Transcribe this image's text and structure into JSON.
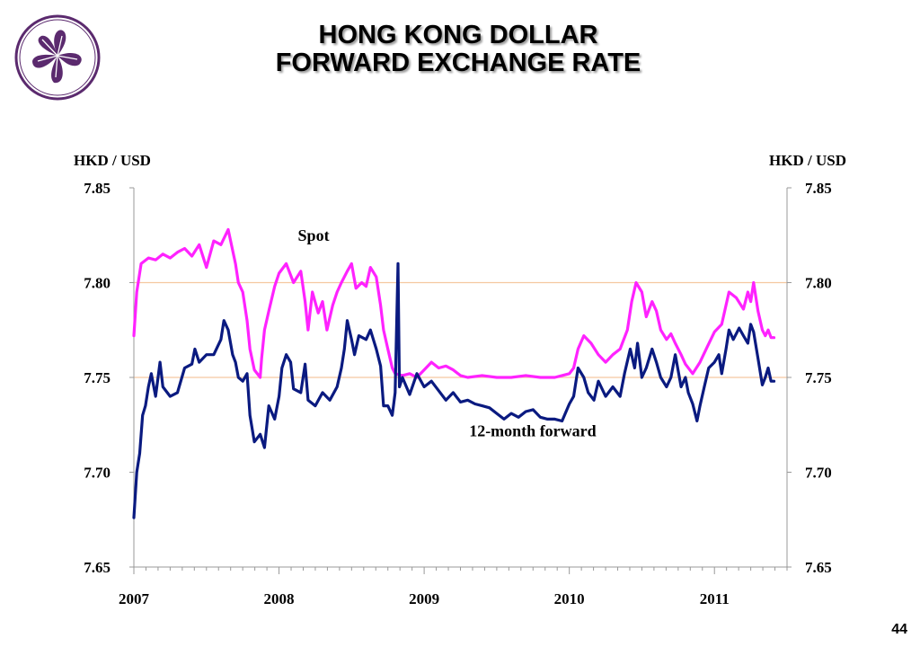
{
  "slide": {
    "title_line1": "HONG KONG DOLLAR",
    "title_line2": "FORWARD EXCHANGE RATE",
    "page_number": "44"
  },
  "colors": {
    "spot": "#ff22ff",
    "forward": "#0a1a80",
    "reference_line": "#f5c8a0",
    "logo": "#5b2a6e"
  },
  "chart_data": {
    "type": "line",
    "title": "",
    "ylabel_left": "HKD / USD",
    "ylabel_right": "HKD / USD",
    "ylim": [
      7.65,
      7.85
    ],
    "xlim": [
      2007.0,
      2011.5
    ],
    "y_ticks": [
      "7.85",
      "7.80",
      "7.75",
      "7.70",
      "7.65"
    ],
    "x_ticks": [
      "2007",
      "2008",
      "2009",
      "2010",
      "2011"
    ],
    "reference_lines": [
      7.8,
      7.75
    ],
    "grid": false,
    "legend": "inline labels",
    "series": [
      {
        "name": "Spot",
        "color": "#ff22ff",
        "points": [
          [
            2007.0,
            7.772
          ],
          [
            2007.02,
            7.795
          ],
          [
            2007.05,
            7.81
          ],
          [
            2007.1,
            7.813
          ],
          [
            2007.15,
            7.812
          ],
          [
            2007.2,
            7.815
          ],
          [
            2007.25,
            7.813
          ],
          [
            2007.3,
            7.816
          ],
          [
            2007.35,
            7.818
          ],
          [
            2007.4,
            7.814
          ],
          [
            2007.45,
            7.82
          ],
          [
            2007.5,
            7.808
          ],
          [
            2007.55,
            7.822
          ],
          [
            2007.6,
            7.82
          ],
          [
            2007.65,
            7.828
          ],
          [
            2007.7,
            7.81
          ],
          [
            2007.72,
            7.8
          ],
          [
            2007.75,
            7.795
          ],
          [
            2007.78,
            7.78
          ],
          [
            2007.8,
            7.765
          ],
          [
            2007.83,
            7.754
          ],
          [
            2007.87,
            7.75
          ],
          [
            2007.88,
            7.76
          ],
          [
            2007.9,
            7.775
          ],
          [
            2007.93,
            7.785
          ],
          [
            2007.97,
            7.798
          ],
          [
            2008.0,
            7.805
          ],
          [
            2008.05,
            7.81
          ],
          [
            2008.1,
            7.8
          ],
          [
            2008.15,
            7.806
          ],
          [
            2008.18,
            7.79
          ],
          [
            2008.2,
            7.775
          ],
          [
            2008.23,
            7.795
          ],
          [
            2008.27,
            7.784
          ],
          [
            2008.3,
            7.79
          ],
          [
            2008.33,
            7.775
          ],
          [
            2008.37,
            7.788
          ],
          [
            2008.4,
            7.795
          ],
          [
            2008.43,
            7.8
          ],
          [
            2008.47,
            7.806
          ],
          [
            2008.5,
            7.81
          ],
          [
            2008.53,
            7.797
          ],
          [
            2008.57,
            7.8
          ],
          [
            2008.6,
            7.798
          ],
          [
            2008.63,
            7.808
          ],
          [
            2008.67,
            7.803
          ],
          [
            2008.7,
            7.788
          ],
          [
            2008.72,
            7.775
          ],
          [
            2008.75,
            7.765
          ],
          [
            2008.78,
            7.755
          ],
          [
            2008.8,
            7.752
          ],
          [
            2008.85,
            7.751
          ],
          [
            2008.9,
            7.752
          ],
          [
            2008.95,
            7.75
          ],
          [
            2009.0,
            7.754
          ],
          [
            2009.05,
            7.758
          ],
          [
            2009.1,
            7.755
          ],
          [
            2009.15,
            7.756
          ],
          [
            2009.2,
            7.754
          ],
          [
            2009.25,
            7.751
          ],
          [
            2009.3,
            7.75
          ],
          [
            2009.4,
            7.751
          ],
          [
            2009.5,
            7.75
          ],
          [
            2009.6,
            7.75
          ],
          [
            2009.7,
            7.751
          ],
          [
            2009.8,
            7.75
          ],
          [
            2009.9,
            7.75
          ],
          [
            2009.95,
            7.751
          ],
          [
            2010.0,
            7.752
          ],
          [
            2010.03,
            7.755
          ],
          [
            2010.06,
            7.765
          ],
          [
            2010.1,
            7.772
          ],
          [
            2010.15,
            7.768
          ],
          [
            2010.2,
            7.762
          ],
          [
            2010.25,
            7.758
          ],
          [
            2010.3,
            7.762
          ],
          [
            2010.35,
            7.765
          ],
          [
            2010.4,
            7.775
          ],
          [
            2010.43,
            7.79
          ],
          [
            2010.46,
            7.8
          ],
          [
            2010.5,
            7.795
          ],
          [
            2010.53,
            7.782
          ],
          [
            2010.57,
            7.79
          ],
          [
            2010.6,
            7.785
          ],
          [
            2010.63,
            7.775
          ],
          [
            2010.67,
            7.77
          ],
          [
            2010.7,
            7.773
          ],
          [
            2010.73,
            7.768
          ],
          [
            2010.77,
            7.762
          ],
          [
            2010.8,
            7.757
          ],
          [
            2010.85,
            7.752
          ],
          [
            2010.9,
            7.758
          ],
          [
            2010.95,
            7.766
          ],
          [
            2011.0,
            7.774
          ],
          [
            2011.05,
            7.778
          ],
          [
            2011.1,
            7.795
          ],
          [
            2011.15,
            7.792
          ],
          [
            2011.2,
            7.786
          ],
          [
            2011.23,
            7.795
          ],
          [
            2011.25,
            7.79
          ],
          [
            2011.27,
            7.8
          ],
          [
            2011.3,
            7.785
          ],
          [
            2011.33,
            7.775
          ],
          [
            2011.35,
            7.772
          ],
          [
            2011.37,
            7.775
          ],
          [
            2011.39,
            7.771
          ],
          [
            2011.41,
            7.771
          ]
        ]
      },
      {
        "name": "12-month forward",
        "color": "#0a1a80",
        "points": [
          [
            2007.0,
            7.676
          ],
          [
            2007.02,
            7.7
          ],
          [
            2007.04,
            7.71
          ],
          [
            2007.06,
            7.73
          ],
          [
            2007.08,
            7.735
          ],
          [
            2007.1,
            7.745
          ],
          [
            2007.12,
            7.752
          ],
          [
            2007.15,
            7.74
          ],
          [
            2007.18,
            7.758
          ],
          [
            2007.2,
            7.745
          ],
          [
            2007.25,
            7.74
          ],
          [
            2007.3,
            7.742
          ],
          [
            2007.35,
            7.755
          ],
          [
            2007.4,
            7.757
          ],
          [
            2007.42,
            7.765
          ],
          [
            2007.45,
            7.758
          ],
          [
            2007.5,
            7.762
          ],
          [
            2007.55,
            7.762
          ],
          [
            2007.6,
            7.77
          ],
          [
            2007.62,
            7.78
          ],
          [
            2007.65,
            7.775
          ],
          [
            2007.68,
            7.762
          ],
          [
            2007.7,
            7.758
          ],
          [
            2007.72,
            7.75
          ],
          [
            2007.75,
            7.748
          ],
          [
            2007.78,
            7.752
          ],
          [
            2007.8,
            7.73
          ],
          [
            2007.83,
            7.716
          ],
          [
            2007.87,
            7.72
          ],
          [
            2007.9,
            7.713
          ],
          [
            2007.93,
            7.735
          ],
          [
            2007.97,
            7.728
          ],
          [
            2008.0,
            7.74
          ],
          [
            2008.02,
            7.755
          ],
          [
            2008.05,
            7.762
          ],
          [
            2008.08,
            7.758
          ],
          [
            2008.1,
            7.744
          ],
          [
            2008.15,
            7.742
          ],
          [
            2008.18,
            7.757
          ],
          [
            2008.2,
            7.738
          ],
          [
            2008.25,
            7.735
          ],
          [
            2008.3,
            7.742
          ],
          [
            2008.35,
            7.738
          ],
          [
            2008.4,
            7.745
          ],
          [
            2008.43,
            7.755
          ],
          [
            2008.45,
            7.765
          ],
          [
            2008.47,
            7.78
          ],
          [
            2008.5,
            7.77
          ],
          [
            2008.52,
            7.762
          ],
          [
            2008.55,
            7.772
          ],
          [
            2008.6,
            7.77
          ],
          [
            2008.63,
            7.775
          ],
          [
            2008.67,
            7.765
          ],
          [
            2008.7,
            7.756
          ],
          [
            2008.72,
            7.735
          ],
          [
            2008.75,
            7.735
          ],
          [
            2008.78,
            7.73
          ],
          [
            2008.8,
            7.742
          ],
          [
            2008.82,
            7.81
          ],
          [
            2008.83,
            7.745
          ],
          [
            2008.85,
            7.75
          ],
          [
            2008.9,
            7.741
          ],
          [
            2008.95,
            7.752
          ],
          [
            2009.0,
            7.745
          ],
          [
            2009.05,
            7.748
          ],
          [
            2009.1,
            7.743
          ],
          [
            2009.15,
            7.738
          ],
          [
            2009.2,
            7.742
          ],
          [
            2009.25,
            7.737
          ],
          [
            2009.3,
            7.738
          ],
          [
            2009.35,
            7.736
          ],
          [
            2009.4,
            7.735
          ],
          [
            2009.45,
            7.734
          ],
          [
            2009.5,
            7.731
          ],
          [
            2009.55,
            7.728
          ],
          [
            2009.6,
            7.731
          ],
          [
            2009.65,
            7.729
          ],
          [
            2009.7,
            7.732
          ],
          [
            2009.75,
            7.733
          ],
          [
            2009.8,
            7.729
          ],
          [
            2009.85,
            7.728
          ],
          [
            2009.9,
            7.728
          ],
          [
            2009.95,
            7.727
          ],
          [
            2010.0,
            7.736
          ],
          [
            2010.03,
            7.74
          ],
          [
            2010.06,
            7.755
          ],
          [
            2010.1,
            7.75
          ],
          [
            2010.13,
            7.742
          ],
          [
            2010.17,
            7.738
          ],
          [
            2010.2,
            7.748
          ],
          [
            2010.25,
            7.74
          ],
          [
            2010.3,
            7.745
          ],
          [
            2010.35,
            7.74
          ],
          [
            2010.38,
            7.752
          ],
          [
            2010.42,
            7.765
          ],
          [
            2010.45,
            7.755
          ],
          [
            2010.47,
            7.768
          ],
          [
            2010.5,
            7.75
          ],
          [
            2010.53,
            7.755
          ],
          [
            2010.57,
            7.765
          ],
          [
            2010.6,
            7.758
          ],
          [
            2010.63,
            7.75
          ],
          [
            2010.67,
            7.745
          ],
          [
            2010.7,
            7.75
          ],
          [
            2010.73,
            7.762
          ],
          [
            2010.77,
            7.745
          ],
          [
            2010.8,
            7.75
          ],
          [
            2010.82,
            7.742
          ],
          [
            2010.85,
            7.736
          ],
          [
            2010.88,
            7.727
          ],
          [
            2010.9,
            7.735
          ],
          [
            2010.93,
            7.745
          ],
          [
            2010.96,
            7.755
          ],
          [
            2011.0,
            7.758
          ],
          [
            2011.03,
            7.762
          ],
          [
            2011.05,
            7.752
          ],
          [
            2011.08,
            7.765
          ],
          [
            2011.1,
            7.775
          ],
          [
            2011.13,
            7.77
          ],
          [
            2011.17,
            7.776
          ],
          [
            2011.2,
            7.772
          ],
          [
            2011.23,
            7.768
          ],
          [
            2011.25,
            7.778
          ],
          [
            2011.27,
            7.774
          ],
          [
            2011.3,
            7.76
          ],
          [
            2011.33,
            7.746
          ],
          [
            2011.35,
            7.75
          ],
          [
            2011.37,
            7.755
          ],
          [
            2011.39,
            7.748
          ],
          [
            2011.41,
            7.748
          ]
        ]
      }
    ],
    "annotations": [
      {
        "text": "Spot",
        "x": 2008.13,
        "y": 7.822
      },
      {
        "text": "12-month forward",
        "x": 2009.31,
        "y": 7.719
      }
    ]
  }
}
